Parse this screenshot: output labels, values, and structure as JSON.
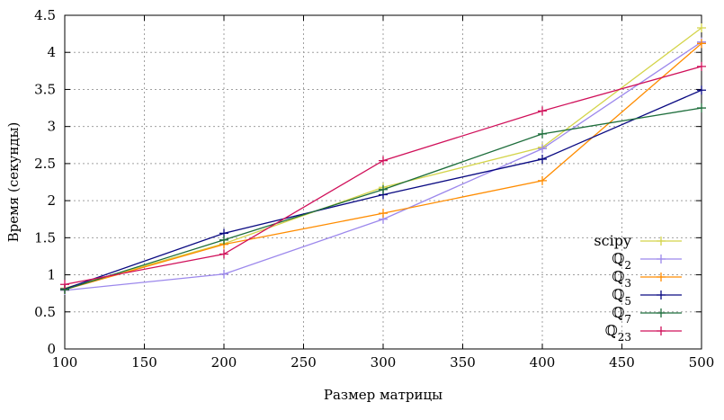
{
  "chart_data": {
    "type": "line",
    "title": "",
    "xlabel": "Размер матрицы",
    "ylabel": "Время (секунды)",
    "xlim": [
      100,
      500
    ],
    "ylim": [
      0,
      4.5
    ],
    "xticks": [
      100,
      150,
      200,
      250,
      300,
      350,
      400,
      450,
      500
    ],
    "yticks": [
      0,
      0.5,
      1,
      1.5,
      2,
      2.5,
      3,
      3.5,
      4,
      4.5
    ],
    "xtick_labels": [
      "100",
      "150",
      "200",
      "250",
      "300",
      "350",
      "400",
      "450",
      "500"
    ],
    "ytick_labels": [
      "0",
      "0.5",
      "1",
      "1.5",
      "2",
      "2.5",
      "3",
      "3.5",
      "4",
      "4.5"
    ],
    "grid": true,
    "legend_position": "bottom-right",
    "x": [
      100,
      200,
      300,
      400,
      500
    ],
    "series": [
      {
        "name": "scipy",
        "color": "#d4d44a",
        "values": [
          0.82,
          1.42,
          2.18,
          2.72,
          4.33
        ]
      },
      {
        "name": "ℚ2",
        "label_base": "ℚ",
        "label_sub": "2",
        "color": "#9c88ec",
        "values": [
          0.79,
          1.01,
          1.75,
          2.7,
          4.14
        ]
      },
      {
        "name": "ℚ3",
        "label_base": "ℚ",
        "label_sub": "3",
        "color": "#ff8c00",
        "values": [
          0.8,
          1.41,
          1.83,
          2.27,
          4.12
        ]
      },
      {
        "name": "ℚ5",
        "label_base": "ℚ",
        "label_sub": "5",
        "color": "#0a0a82",
        "values": [
          0.81,
          1.56,
          2.08,
          2.56,
          3.49
        ]
      },
      {
        "name": "ℚ7",
        "label_base": "ℚ",
        "label_sub": "7",
        "color": "#1e6e3c",
        "values": [
          0.8,
          1.47,
          2.15,
          2.9,
          3.25
        ]
      },
      {
        "name": "ℚ23",
        "label_base": "ℚ",
        "label_sub": "23",
        "color": "#d0105a",
        "values": [
          0.87,
          1.28,
          2.54,
          3.21,
          3.81
        ]
      }
    ]
  }
}
